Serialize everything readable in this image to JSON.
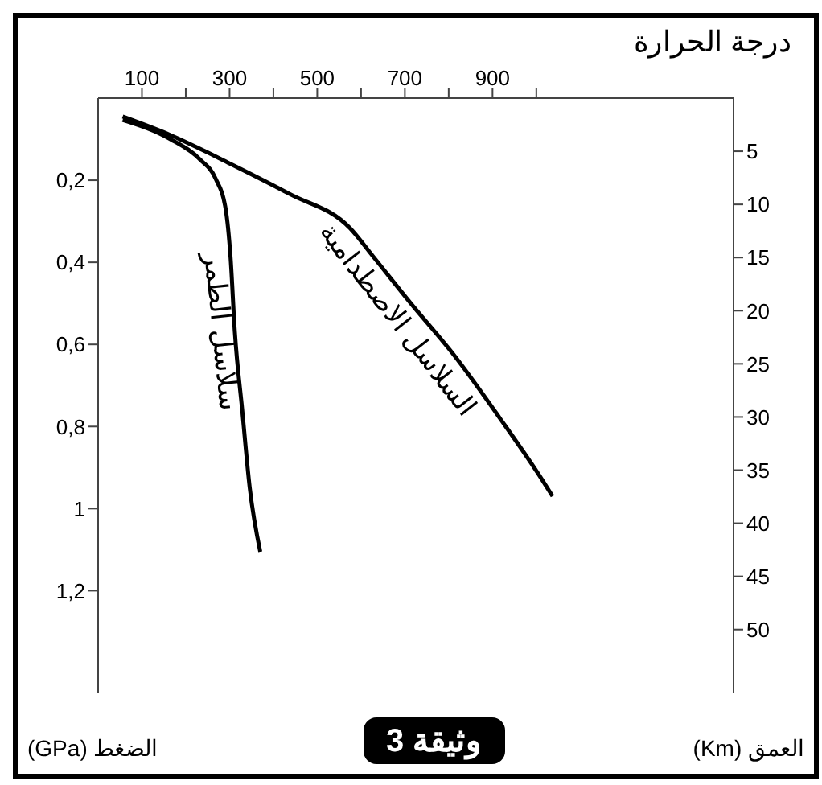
{
  "chart_data": {
    "type": "line",
    "xlabel": "درجة الحرارة",
    "ylabel": "الضغط (GPa)",
    "y2label": "العمق (Km)",
    "annotations": [
      "وثيقة 3"
    ],
    "xlim": [
      0,
      1450
    ],
    "xticks": [
      100,
      {
        "value": 200,
        "label": null
      },
      300,
      {
        "value": 400,
        "label": null
      },
      500,
      {
        "value": 600,
        "label": null
      },
      700,
      {
        "value": 800,
        "label": null
      },
      900,
      {
        "value": 1000,
        "label": null
      }
    ],
    "ylim": [
      1.45,
      0
    ],
    "yticks": [
      {
        "value": 0.2,
        "label": "0,2"
      },
      {
        "value": 0.4,
        "label": "0,4"
      },
      {
        "value": 0.6,
        "label": "0,6"
      },
      {
        "value": 0.8,
        "label": "0,8"
      },
      1,
      {
        "value": 1.2,
        "label": "1,2"
      }
    ],
    "y2lim": [
      56,
      0
    ],
    "y2ticks": [
      5,
      10,
      15,
      20,
      25,
      30,
      35,
      40,
      45,
      50
    ],
    "grid": false,
    "legend": false,
    "marker": "none",
    "line_style": "solid",
    "series": [
      {
        "name": "سلاسل الطمر",
        "color": "#000000",
        "x": [
          56,
          165,
          233,
          268,
          291,
          302,
          312,
          329,
          346,
          370
        ],
        "values": [
          0.053,
          0.1,
          0.15,
          0.196,
          0.27,
          0.385,
          0.57,
          0.762,
          0.95,
          1.105
        ]
      },
      {
        "name": "السلاسل الاصطدامية",
        "color": "#000000",
        "x": [
          56,
          165,
          302,
          438,
          575,
          627,
          712,
          815,
          917,
          1003,
          1037
        ],
        "values": [
          0.045,
          0.09,
          0.16,
          0.234,
          0.317,
          0.385,
          0.498,
          0.63,
          0.78,
          0.913,
          0.97
        ]
      }
    ]
  }
}
